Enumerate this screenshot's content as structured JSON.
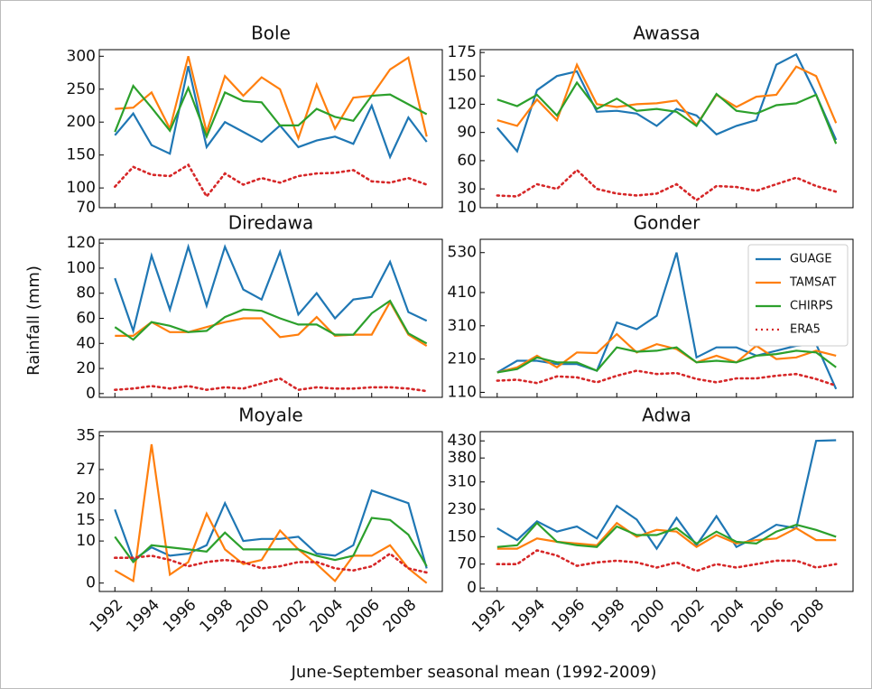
{
  "figure": {
    "xlabel": "June-September seasonal mean (1992-2009)",
    "ylabel": "Rainfall (mm)"
  },
  "chart_data": [
    {
      "type": "line",
      "title": "Bole",
      "x": [
        1992,
        1993,
        1994,
        1995,
        1996,
        1997,
        1998,
        1999,
        2000,
        2001,
        2002,
        2003,
        2004,
        2005,
        2006,
        2007,
        2008,
        2009
      ],
      "xlim": [
        1991.15,
        2009.85
      ],
      "xticks": [
        1992,
        1994,
        1996,
        1998,
        2000,
        2002,
        2004,
        2006,
        2008
      ],
      "ylim": [
        70,
        310
      ],
      "yticks": [
        70,
        100,
        150,
        200,
        250,
        300
      ],
      "series": [
        {
          "color": "#1f77b4",
          "linestyle": "solid",
          "values": [
            180,
            213,
            165,
            152,
            285,
            162,
            200,
            185,
            170,
            195,
            162,
            172,
            178,
            167,
            225,
            147,
            207,
            170
          ]
        },
        {
          "color": "#ff7f0e",
          "linestyle": "solid",
          "values": [
            220,
            222,
            245,
            190,
            300,
            185,
            270,
            240,
            268,
            250,
            175,
            257,
            190,
            237,
            240,
            280,
            298,
            178
          ]
        },
        {
          "color": "#2ca02c",
          "linestyle": "solid",
          "values": [
            185,
            255,
            222,
            187,
            252,
            178,
            245,
            232,
            230,
            195,
            195,
            220,
            208,
            202,
            240,
            242,
            227,
            212
          ]
        },
        {
          "color": "#d62728",
          "linestyle": "dotted",
          "values": [
            102,
            132,
            120,
            118,
            135,
            87,
            122,
            105,
            115,
            108,
            118,
            122,
            123,
            127,
            110,
            108,
            115,
            105
          ]
        }
      ]
    },
    {
      "type": "line",
      "title": "Awassa",
      "x": [
        1992,
        1993,
        1994,
        1995,
        1996,
        1997,
        1998,
        1999,
        2000,
        2001,
        2002,
        2003,
        2004,
        2005,
        2006,
        2007,
        2008,
        2009
      ],
      "xlim": [
        1991.15,
        2009.85
      ],
      "xticks": [
        1992,
        1994,
        1996,
        1998,
        2000,
        2002,
        2004,
        2006,
        2008
      ],
      "ylim": [
        10,
        178
      ],
      "yticks": [
        10,
        30,
        60,
        90,
        120,
        150,
        175
      ],
      "series": [
        {
          "color": "#1f77b4",
          "linestyle": "solid",
          "values": [
            95,
            70,
            135,
            150,
            155,
            112,
            113,
            110,
            97,
            115,
            108,
            88,
            97,
            103,
            162,
            173,
            130,
            82
          ]
        },
        {
          "color": "#ff7f0e",
          "linestyle": "solid",
          "values": [
            103,
            97,
            125,
            103,
            162,
            120,
            117,
            120,
            121,
            124,
            98,
            130,
            117,
            128,
            130,
            160,
            150,
            100
          ]
        },
        {
          "color": "#2ca02c",
          "linestyle": "solid",
          "values": [
            125,
            118,
            130,
            108,
            143,
            115,
            126,
            113,
            115,
            112,
            97,
            131,
            113,
            110,
            119,
            121,
            130,
            78
          ]
        },
        {
          "color": "#d62728",
          "linestyle": "dotted",
          "values": [
            23,
            22,
            35,
            30,
            50,
            30,
            25,
            23,
            25,
            35,
            18,
            33,
            32,
            28,
            35,
            42,
            33,
            27
          ]
        }
      ]
    },
    {
      "type": "line",
      "title": "Diredawa",
      "x": [
        1992,
        1993,
        1994,
        1995,
        1996,
        1997,
        1998,
        1999,
        2000,
        2001,
        2002,
        2003,
        2004,
        2005,
        2006,
        2007,
        2008,
        2009
      ],
      "xlim": [
        1991.15,
        2009.85
      ],
      "xticks": [
        1992,
        1994,
        1996,
        1998,
        2000,
        2002,
        2004,
        2006,
        2008
      ],
      "ylim": [
        -3,
        123
      ],
      "yticks": [
        0,
        20,
        40,
        60,
        80,
        100,
        120
      ],
      "series": [
        {
          "color": "#1f77b4",
          "linestyle": "solid",
          "values": [
            92,
            50,
            110,
            67,
            117,
            70,
            117,
            83,
            75,
            113,
            63,
            80,
            60,
            75,
            77,
            105,
            65,
            58
          ]
        },
        {
          "color": "#ff7f0e",
          "linestyle": "solid",
          "values": [
            46,
            46,
            57,
            49,
            49,
            53,
            57,
            60,
            60,
            45,
            47,
            61,
            46,
            47,
            47,
            73,
            47,
            38
          ]
        },
        {
          "color": "#2ca02c",
          "linestyle": "solid",
          "values": [
            53,
            43,
            57,
            54,
            49,
            50,
            61,
            67,
            66,
            60,
            55,
            55,
            47,
            47,
            64,
            74,
            48,
            40
          ]
        },
        {
          "color": "#d62728",
          "linestyle": "dotted",
          "values": [
            3,
            4,
            6,
            4,
            6,
            3,
            5,
            4,
            8,
            12,
            3,
            5,
            4,
            4,
            5,
            5,
            4,
            2
          ]
        }
      ]
    },
    {
      "type": "line",
      "title": "Gonder",
      "legend": "upper right",
      "x": [
        1992,
        1993,
        1994,
        1995,
        1996,
        1997,
        1998,
        1999,
        2000,
        2001,
        2002,
        2003,
        2004,
        2005,
        2006,
        2007,
        2008,
        2009
      ],
      "xlim": [
        1991.15,
        2009.85
      ],
      "xticks": [
        1992,
        1994,
        1996,
        1998,
        2000,
        2002,
        2004,
        2006,
        2008
      ],
      "ylim": [
        95,
        570
      ],
      "yticks": [
        110,
        210,
        310,
        410,
        530
      ],
      "series": [
        {
          "name": "GUAGE",
          "color": "#1f77b4",
          "linestyle": "solid",
          "values": [
            170,
            205,
            205,
            195,
            195,
            175,
            320,
            300,
            340,
            530,
            215,
            245,
            245,
            220,
            235,
            250,
            255,
            120
          ]
        },
        {
          "name": "TAMSAT",
          "color": "#ff7f0e",
          "linestyle": "solid",
          "values": [
            170,
            185,
            220,
            185,
            230,
            228,
            285,
            230,
            255,
            240,
            200,
            220,
            200,
            250,
            210,
            215,
            235,
            220
          ]
        },
        {
          "name": "CHIRPS",
          "color": "#2ca02c",
          "linestyle": "solid",
          "values": [
            170,
            180,
            215,
            200,
            200,
            175,
            245,
            232,
            235,
            245,
            200,
            205,
            200,
            220,
            225,
            235,
            230,
            185
          ]
        },
        {
          "name": "ERA5",
          "color": "#d62728",
          "linestyle": "dotted",
          "values": [
            145,
            148,
            138,
            158,
            155,
            140,
            160,
            175,
            165,
            168,
            150,
            140,
            152,
            152,
            160,
            165,
            150,
            130
          ]
        }
      ]
    },
    {
      "type": "line",
      "title": "Moyale",
      "x": [
        1992,
        1993,
        1994,
        1995,
        1996,
        1997,
        1998,
        1999,
        2000,
        2001,
        2002,
        2003,
        2004,
        2005,
        2006,
        2007,
        2008,
        2009
      ],
      "xlim": [
        1991.15,
        2009.85
      ],
      "xticks": [
        1992,
        1994,
        1996,
        1998,
        2000,
        2002,
        2004,
        2006,
        2008
      ],
      "ylim": [
        -2,
        36
      ],
      "yticks": [
        0,
        10,
        15,
        20,
        27,
        35
      ],
      "series": [
        {
          "color": "#1f77b4",
          "linestyle": "solid",
          "values": [
            17.5,
            5.5,
            8.5,
            6.5,
            7,
            9,
            19,
            10,
            10.5,
            10.5,
            11,
            7,
            6.5,
            9,
            22,
            20.5,
            19,
            3.5
          ]
        },
        {
          "color": "#ff7f0e",
          "linestyle": "solid",
          "values": [
            3,
            0.5,
            33,
            2,
            5,
            16.5,
            8,
            4.5,
            5.5,
            12.5,
            8,
            4.5,
            0.5,
            6.5,
            6.5,
            9,
            3.5,
            0
          ]
        },
        {
          "color": "#2ca02c",
          "linestyle": "solid",
          "values": [
            11,
            5,
            9,
            8.5,
            8,
            7.5,
            12,
            8,
            8,
            8,
            8,
            6.5,
            5.5,
            6.5,
            15.5,
            15,
            11.5,
            4
          ]
        },
        {
          "color": "#d62728",
          "linestyle": "dotted",
          "values": [
            6,
            6,
            6.5,
            5.5,
            4,
            5,
            5.5,
            5,
            3.5,
            4,
            5,
            5,
            3.5,
            3,
            4,
            7,
            3.5,
            2.5
          ]
        }
      ]
    },
    {
      "type": "line",
      "title": "Adwa",
      "x": [
        1992,
        1993,
        1994,
        1995,
        1996,
        1997,
        1998,
        1999,
        2000,
        2001,
        2002,
        2003,
        2004,
        2005,
        2006,
        2007,
        2008,
        2009
      ],
      "xlim": [
        1991.15,
        2009.85
      ],
      "xticks": [
        1992,
        1994,
        1996,
        1998,
        2000,
        2002,
        2004,
        2006,
        2008
      ],
      "ylim": [
        -10,
        457
      ],
      "yticks": [
        0,
        70,
        150,
        230,
        310,
        380,
        430
      ],
      "series": [
        {
          "color": "#1f77b4",
          "linestyle": "solid",
          "values": [
            175,
            140,
            195,
            165,
            180,
            145,
            240,
            200,
            115,
            205,
            125,
            210,
            120,
            150,
            185,
            175,
            430,
            432
          ]
        },
        {
          "color": "#ff7f0e",
          "linestyle": "solid",
          "values": [
            115,
            115,
            145,
            135,
            130,
            125,
            190,
            150,
            170,
            165,
            120,
            155,
            130,
            140,
            145,
            175,
            140,
            140
          ]
        },
        {
          "color": "#2ca02c",
          "linestyle": "solid",
          "values": [
            120,
            125,
            190,
            135,
            125,
            120,
            180,
            155,
            155,
            175,
            130,
            165,
            135,
            130,
            165,
            185,
            170,
            150
          ]
        },
        {
          "color": "#d62728",
          "linestyle": "dotted",
          "values": [
            70,
            70,
            110,
            95,
            65,
            75,
            80,
            75,
            60,
            75,
            50,
            70,
            60,
            70,
            80,
            80,
            60,
            70
          ]
        }
      ]
    }
  ]
}
